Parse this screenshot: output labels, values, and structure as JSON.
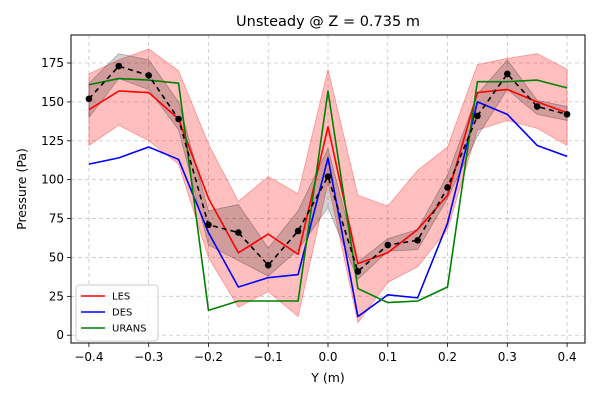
{
  "chart_data": {
    "type": "line",
    "title": "Unsteady @ Z = 0.735 m",
    "xlabel": "Y (m)",
    "ylabel": "Pressure (Pa)",
    "xlim": [
      -0.43,
      0.43
    ],
    "ylim": [
      -5,
      193
    ],
    "xticks": [
      -0.4,
      -0.3,
      -0.2,
      -0.1,
      0.0,
      0.1,
      0.2,
      0.3,
      0.4
    ],
    "xtick_labels": [
      "−0.4",
      "−0.3",
      "−0.2",
      "−0.1",
      "0.0",
      "0.1",
      "0.2",
      "0.3",
      "0.4"
    ],
    "yticks": [
      0,
      25,
      50,
      75,
      100,
      125,
      150,
      175
    ],
    "ytick_labels": [
      "0",
      "25",
      "50",
      "75",
      "100",
      "125",
      "150",
      "175"
    ],
    "grid": true,
    "legend_position": "lower-left",
    "x": [
      -0.4,
      -0.35,
      -0.3,
      -0.25,
      -0.2,
      -0.15,
      -0.1,
      -0.05,
      0.0,
      0.05,
      0.1,
      0.15,
      0.2,
      0.25,
      0.3,
      0.35,
      0.4
    ],
    "bands": [
      {
        "color": "#ff0000",
        "opacity": 0.25,
        "lower": [
          122,
          135,
          125,
          110,
          50,
          18,
          28,
          12,
          98,
          8,
          34,
          44,
          68,
          132,
          138,
          133,
          122
        ],
        "upper": [
          168,
          177,
          184,
          170,
          123,
          86,
          102,
          91,
          171,
          90,
          83,
          106,
          121,
          174,
          178,
          181,
          171
        ]
      },
      {
        "color": "#000000",
        "opacity": 0.18,
        "lower": [
          140,
          165,
          158,
          132,
          58,
          48,
          38,
          55,
          82,
          36,
          54,
          55,
          88,
          128,
          158,
          142,
          138
        ],
        "upper": [
          162,
          181,
          177,
          150,
          80,
          84,
          56,
          80,
          120,
          47,
          62,
          68,
          103,
          155,
          177,
          151,
          147
        ]
      }
    ],
    "series": [
      {
        "name": "LES",
        "color": "#ff0000",
        "dash": "",
        "markers": false,
        "legend": true,
        "values": [
          145,
          157,
          156,
          139,
          88,
          53,
          65,
          52,
          134,
          46,
          53,
          68,
          90,
          156,
          158,
          150,
          143
        ]
      },
      {
        "name": "DES",
        "color": "#0000ff",
        "dash": "",
        "markers": false,
        "legend": true,
        "values": [
          110,
          114,
          121,
          113,
          66,
          31,
          37,
          39,
          114,
          12,
          26,
          24,
          72,
          150,
          142,
          122,
          115
        ]
      },
      {
        "name": "URANS",
        "color": "#008000",
        "dash": "",
        "markers": false,
        "legend": true,
        "values": [
          161,
          165,
          164,
          162,
          16,
          22,
          22,
          22,
          157,
          30,
          21,
          22,
          31,
          163,
          163,
          164,
          159
        ]
      },
      {
        "color": "#000000",
        "dash": "5,4",
        "markers": true,
        "legend": false,
        "values": [
          152,
          173,
          167,
          139,
          71,
          66,
          45,
          67,
          102,
          41,
          58,
          61,
          95,
          141,
          168,
          147,
          142
        ]
      }
    ]
  }
}
